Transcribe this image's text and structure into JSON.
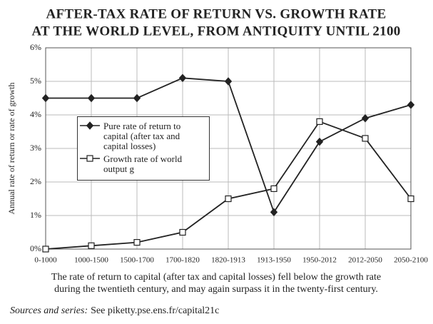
{
  "chart_data": {
    "type": "line",
    "title": [
      "AFTER-TAX RATE OF RETURN VS. GROWTH RATE",
      "AT THE WORLD LEVEL, FROM ANTIQUITY UNTIL 2100"
    ],
    "y_label": "Annual rate of return or rate of growth",
    "categories": [
      "0-1000",
      "1000-1500",
      "1500-1700",
      "1700-1820",
      "1820-1913",
      "1913-1950",
      "1950-2012",
      "2012-2050",
      "2050-2100"
    ],
    "series": [
      {
        "name": "Pure rate of return to capital (after tax and capital losses)",
        "color": "#222222",
        "marker": "diamond",
        "values": [
          4.5,
          4.5,
          4.5,
          5.1,
          5.0,
          1.1,
          3.2,
          3.9,
          4.3
        ]
      },
      {
        "name": "Growth rate of world output g",
        "color": "#222222",
        "marker": "square",
        "values": [
          0.0,
          0.1,
          0.2,
          0.5,
          1.5,
          1.8,
          3.8,
          3.3,
          1.5
        ]
      }
    ],
    "ylim": [
      0,
      6
    ],
    "yticks": [
      {
        "value": 0,
        "label": "0%"
      },
      {
        "value": 1,
        "label": "1%"
      },
      {
        "value": 2,
        "label": "2%"
      },
      {
        "value": 3,
        "label": "3%"
      },
      {
        "value": 4,
        "label": "4%"
      },
      {
        "value": 5,
        "label": "5%"
      },
      {
        "value": 6,
        "label": "6%"
      }
    ],
    "grid": true,
    "caption": [
      "The rate of return to capital (after tax and capital losses) fell below the growth rate",
      "during the twentieth century, and may again surpass it in the twenty-first century."
    ],
    "source_label": "Sources and series:",
    "source_text": "See piketty.pse.ens.fr/capital21c"
  }
}
